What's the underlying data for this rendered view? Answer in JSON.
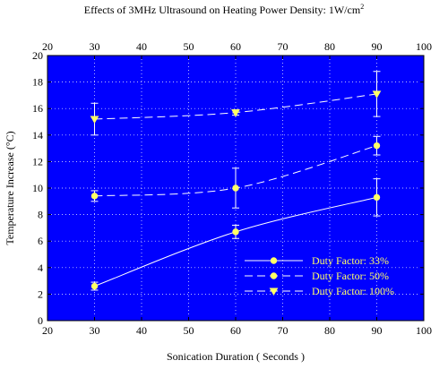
{
  "chart_data": {
    "type": "line",
    "title": "Effects of 3MHz Ultrasound on Heating Power Density: 1W/cm",
    "title_superscript": "2",
    "xlabel": "Sonication Duration ( Seconds )",
    "ylabel": "Temperature Increase (°C)",
    "xlim": [
      20,
      100
    ],
    "ylim": [
      0,
      20
    ],
    "xticks": [
      "20",
      "30",
      "40",
      "50",
      "60",
      "70",
      "80",
      "90",
      "100"
    ],
    "yticks": [
      "0",
      "2",
      "4",
      "6",
      "8",
      "10",
      "12",
      "14",
      "16",
      "18",
      "20"
    ],
    "grid": true,
    "legend_position": "bottom-right",
    "plot_background": "#0000ff",
    "series_color": "#ffff66",
    "line_color": "#ffffff",
    "x": [
      30,
      60,
      90
    ],
    "series": [
      {
        "name": "Duty Factor: 33%",
        "marker": "circle",
        "line": "solid",
        "values": [
          2.6,
          6.7,
          9.3
        ],
        "errors": [
          0.3,
          0.5,
          1.4
        ]
      },
      {
        "name": "Duty Factor: 50%",
        "marker": "circle",
        "line": "dashed",
        "values": [
          9.4,
          10.0,
          13.2
        ],
        "errors": [
          0.4,
          1.5,
          0.7
        ]
      },
      {
        "name": "Duty Factor: 100%",
        "marker": "triangle",
        "line": "dashed",
        "values": [
          15.2,
          15.7,
          17.1
        ],
        "errors": [
          1.2,
          0.2,
          1.7
        ]
      }
    ]
  }
}
